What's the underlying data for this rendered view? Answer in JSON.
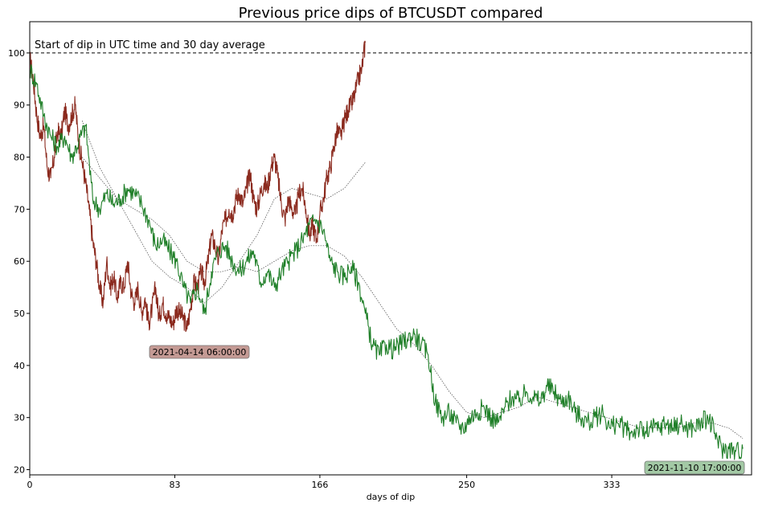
{
  "chart_data": {
    "type": "line",
    "title": "Previous price dips of BTCUSDT compared",
    "xlabel": "days of dip",
    "ylabel": "",
    "annotation": "Start of dip in UTC time and 30 day average",
    "xlim": [
      0,
      413
    ],
    "ylim": [
      19,
      106
    ],
    "xticks": [
      0,
      83,
      166,
      250,
      333
    ],
    "yticks": [
      20,
      30,
      40,
      50,
      60,
      70,
      80,
      90,
      100
    ],
    "reference_line": {
      "y": 100,
      "style": "dashed",
      "color": "#000000"
    },
    "grid": false,
    "series": [
      {
        "name": "2021-04-14 06:00:00",
        "color": "#8b2a1e",
        "badge_color": "#c49a94",
        "badge_text": "2021-04-14 06:00:00",
        "x": [
          0,
          2,
          4,
          6,
          8,
          10,
          12,
          14,
          16,
          18,
          20,
          22,
          24,
          26,
          28,
          30,
          32,
          34,
          36,
          38,
          40,
          42,
          44,
          46,
          48,
          50,
          52,
          54,
          56,
          58,
          60,
          62,
          64,
          66,
          68,
          70,
          72,
          74,
          76,
          78,
          80,
          82,
          84,
          86,
          88,
          90,
          92,
          94,
          96,
          98,
          100,
          102,
          104,
          106,
          108,
          110,
          112,
          114,
          116,
          118,
          120,
          122,
          124,
          126,
          128,
          130,
          132,
          134,
          136,
          138,
          140,
          142,
          144,
          146,
          148,
          150,
          152,
          154,
          156,
          158,
          160,
          162,
          164,
          166,
          168,
          170,
          172,
          174,
          176,
          178,
          180,
          182,
          184,
          186,
          188,
          190,
          192
        ],
        "values": [
          99,
          95,
          88,
          84,
          86,
          78,
          76,
          80,
          85,
          84,
          89,
          86,
          88,
          90,
          83,
          79,
          75,
          70,
          64,
          60,
          55,
          52,
          60,
          55,
          57,
          53,
          56,
          55,
          60,
          54,
          52,
          55,
          50,
          53,
          48,
          51,
          55,
          49,
          52,
          50,
          49,
          48,
          51,
          50,
          49,
          47,
          51,
          56,
          55,
          58,
          56,
          60,
          65,
          63,
          60,
          66,
          68,
          70,
          69,
          72,
          73,
          71,
          74,
          77,
          72,
          70,
          73,
          75,
          74,
          78,
          80,
          76,
          71,
          68,
          72,
          70,
          69,
          73,
          74,
          70,
          65,
          67,
          64,
          69,
          72,
          76,
          78,
          82,
          85,
          84,
          87,
          89,
          90,
          92,
          95,
          97,
          102
        ]
      },
      {
        "name": "2021-11-10 17:00:00",
        "color": "#1f7f28",
        "badge_color": "#a3c9a5",
        "badge_text": "2021-11-10 17:00:00",
        "x": [
          0,
          4,
          8,
          12,
          16,
          20,
          24,
          28,
          32,
          36,
          40,
          44,
          48,
          52,
          56,
          60,
          64,
          68,
          72,
          76,
          80,
          84,
          88,
          92,
          96,
          100,
          104,
          108,
          112,
          116,
          120,
          124,
          128,
          132,
          136,
          140,
          144,
          148,
          152,
          156,
          160,
          164,
          168,
          172,
          176,
          180,
          184,
          188,
          192,
          196,
          200,
          204,
          208,
          212,
          216,
          220,
          224,
          228,
          232,
          236,
          240,
          244,
          248,
          252,
          256,
          260,
          264,
          268,
          272,
          276,
          280,
          284,
          288,
          292,
          296,
          300,
          304,
          308,
          312,
          316,
          320,
          324,
          328,
          332,
          336,
          340,
          344,
          348,
          352,
          356,
          360,
          364,
          368,
          372,
          376,
          380,
          384,
          388,
          392,
          396,
          400,
          404,
          408
        ],
        "values": [
          97,
          94,
          88,
          84,
          82,
          84,
          80,
          83,
          86,
          72,
          70,
          73,
          71,
          72,
          74,
          73,
          71,
          68,
          63,
          64,
          62,
          60,
          55,
          52,
          55,
          50,
          58,
          62,
          63,
          60,
          58,
          60,
          62,
          56,
          58,
          55,
          58,
          60,
          62,
          64,
          67,
          68,
          66,
          60,
          58,
          57,
          59,
          56,
          50,
          44,
          42,
          44,
          43,
          44,
          45,
          46,
          44,
          42,
          33,
          30,
          31,
          29,
          28,
          30,
          31,
          32,
          30,
          29,
          32,
          34,
          33,
          35,
          34,
          33,
          36,
          35,
          33,
          34,
          31,
          30,
          29,
          30,
          31,
          28,
          29,
          28,
          27,
          28,
          27,
          28,
          28,
          29,
          28,
          29,
          28,
          28,
          29,
          30,
          27,
          24,
          24,
          23.5,
          24
        ]
      }
    ],
    "averages": [
      {
        "color": "#444444",
        "style": "dotted",
        "x": [
          30,
          40,
          50,
          60,
          70,
          80,
          90,
          100,
          110,
          120,
          130,
          140,
          150,
          160,
          170,
          180,
          192
        ],
        "values": [
          87,
          78,
          72,
          66,
          60,
          57,
          55,
          52,
          55,
          60,
          65,
          72,
          74,
          73,
          72,
          74,
          79
        ]
      },
      {
        "color": "#444444",
        "style": "dotted",
        "x": [
          30,
          40,
          50,
          60,
          70,
          80,
          90,
          100,
          110,
          120,
          130,
          140,
          150,
          160,
          170,
          180,
          190,
          200,
          210,
          220,
          230,
          240,
          250,
          260,
          270,
          280,
          290,
          300,
          310,
          320,
          330,
          340,
          350,
          360,
          370,
          380,
          390,
          400,
          408
        ],
        "values": [
          80,
          76,
          72,
          70,
          68,
          65,
          60,
          58,
          58,
          59,
          58,
          60,
          62,
          63,
          63,
          61,
          57,
          52,
          47,
          44,
          40,
          35,
          31,
          30,
          31,
          32,
          34,
          33,
          32,
          31,
          30,
          29,
          28,
          28,
          28,
          29,
          29,
          28,
          26
        ]
      }
    ]
  }
}
